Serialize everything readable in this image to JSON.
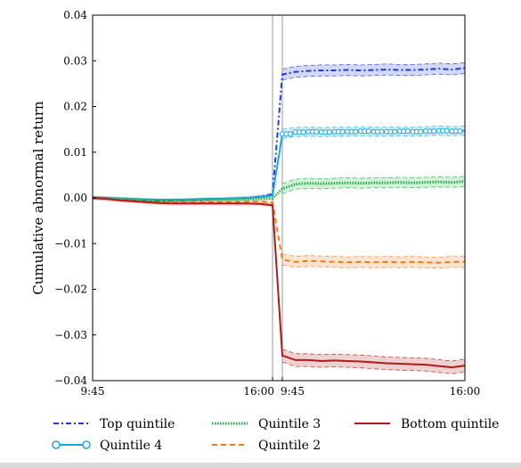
{
  "chart_data": {
    "type": "line",
    "ylabel": "Cumulative abnormal return",
    "xlabel": "",
    "ylim": [
      -0.04,
      0.04
    ],
    "yticks": [
      -0.04,
      -0.03,
      -0.02,
      -0.01,
      0.0,
      0.01,
      0.02,
      0.03,
      0.04
    ],
    "ytick_labels": [
      "−0.04",
      "−0.03",
      "−0.02",
      "−0.01",
      "0.00",
      "0.01",
      "0.02",
      "0.03",
      "0.04"
    ],
    "x_segments": [
      {
        "start_label": "9:45",
        "end_label": "16:00",
        "session": "day 0"
      },
      {
        "start_label": "9:45",
        "end_label": "16:00",
        "session": "day 1"
      }
    ],
    "grid": false,
    "legend_position": "bottom",
    "series": [
      {
        "name": "Top quintile",
        "color": "#1f3bd6",
        "style": "dash-dot",
        "day0": [
          0.0,
          0.0,
          -0.0002,
          -0.0004,
          -0.0005,
          -0.0006,
          -0.0006,
          -0.0005,
          -0.0004,
          -0.0003,
          -0.0002,
          -0.0001,
          0.0,
          0.0003,
          0.0008
        ],
        "day1": [
          0.027,
          0.0276,
          0.0278,
          0.0279,
          0.0279,
          0.028,
          0.0279,
          0.028,
          0.0281,
          0.028,
          0.028,
          0.0281,
          0.0283,
          0.0281,
          0.0284
        ],
        "band": 0.0012
      },
      {
        "name": "Quintile 4",
        "color": "#18a9dc",
        "style": "solid-circle",
        "day0": [
          0.0,
          0.0,
          -0.0001,
          -0.0002,
          -0.0003,
          -0.0004,
          -0.0004,
          -0.0004,
          -0.0003,
          -0.0002,
          -0.0002,
          -0.0001,
          0.0,
          0.0002,
          0.0005
        ],
        "day1": [
          0.014,
          0.0144,
          0.0145,
          0.0144,
          0.0145,
          0.0145,
          0.0146,
          0.0145,
          0.0145,
          0.0146,
          0.0145,
          0.0146,
          0.0147,
          0.0146,
          0.0147
        ],
        "band": 0.001
      },
      {
        "name": "Quintile 3",
        "color": "#22b544",
        "style": "dotted",
        "day0": [
          0.0,
          -0.0001,
          -0.0002,
          -0.0003,
          -0.0005,
          -0.0006,
          -0.0006,
          -0.0005,
          -0.0005,
          -0.0004,
          -0.0004,
          -0.0004,
          -0.0003,
          -0.0002,
          -0.0001
        ],
        "day1": [
          0.002,
          0.003,
          0.0032,
          0.0031,
          0.0032,
          0.0033,
          0.0032,
          0.0033,
          0.0033,
          0.0034,
          0.0033,
          0.0034,
          0.0035,
          0.0034,
          0.0036
        ],
        "band": 0.0011
      },
      {
        "name": "Quintile 2",
        "color": "#f07a1a",
        "style": "dashed",
        "day0": [
          0.0,
          -0.0002,
          -0.0004,
          -0.0006,
          -0.0008,
          -0.001,
          -0.001,
          -0.001,
          -0.001,
          -0.0009,
          -0.0009,
          -0.0009,
          -0.0008,
          -0.0008,
          -0.001
        ],
        "day1": [
          -0.0135,
          -0.014,
          -0.0138,
          -0.0139,
          -0.014,
          -0.0141,
          -0.014,
          -0.0141,
          -0.014,
          -0.0141,
          -0.014,
          -0.0141,
          -0.0142,
          -0.014,
          -0.014
        ],
        "band": 0.0012
      },
      {
        "name": "Bottom quintile",
        "color": "#b01a1a",
        "style": "solid",
        "day0": [
          0.0,
          -0.0002,
          -0.0005,
          -0.0007,
          -0.0009,
          -0.0011,
          -0.0012,
          -0.0012,
          -0.0012,
          -0.0012,
          -0.0012,
          -0.0012,
          -0.0012,
          -0.0013,
          -0.0016
        ],
        "day1": [
          -0.0345,
          -0.0355,
          -0.0355,
          -0.0357,
          -0.0356,
          -0.0357,
          -0.0358,
          -0.036,
          -0.0362,
          -0.0363,
          -0.0364,
          -0.0365,
          -0.0368,
          -0.0371,
          -0.0367
        ],
        "band": 0.0014
      }
    ]
  }
}
